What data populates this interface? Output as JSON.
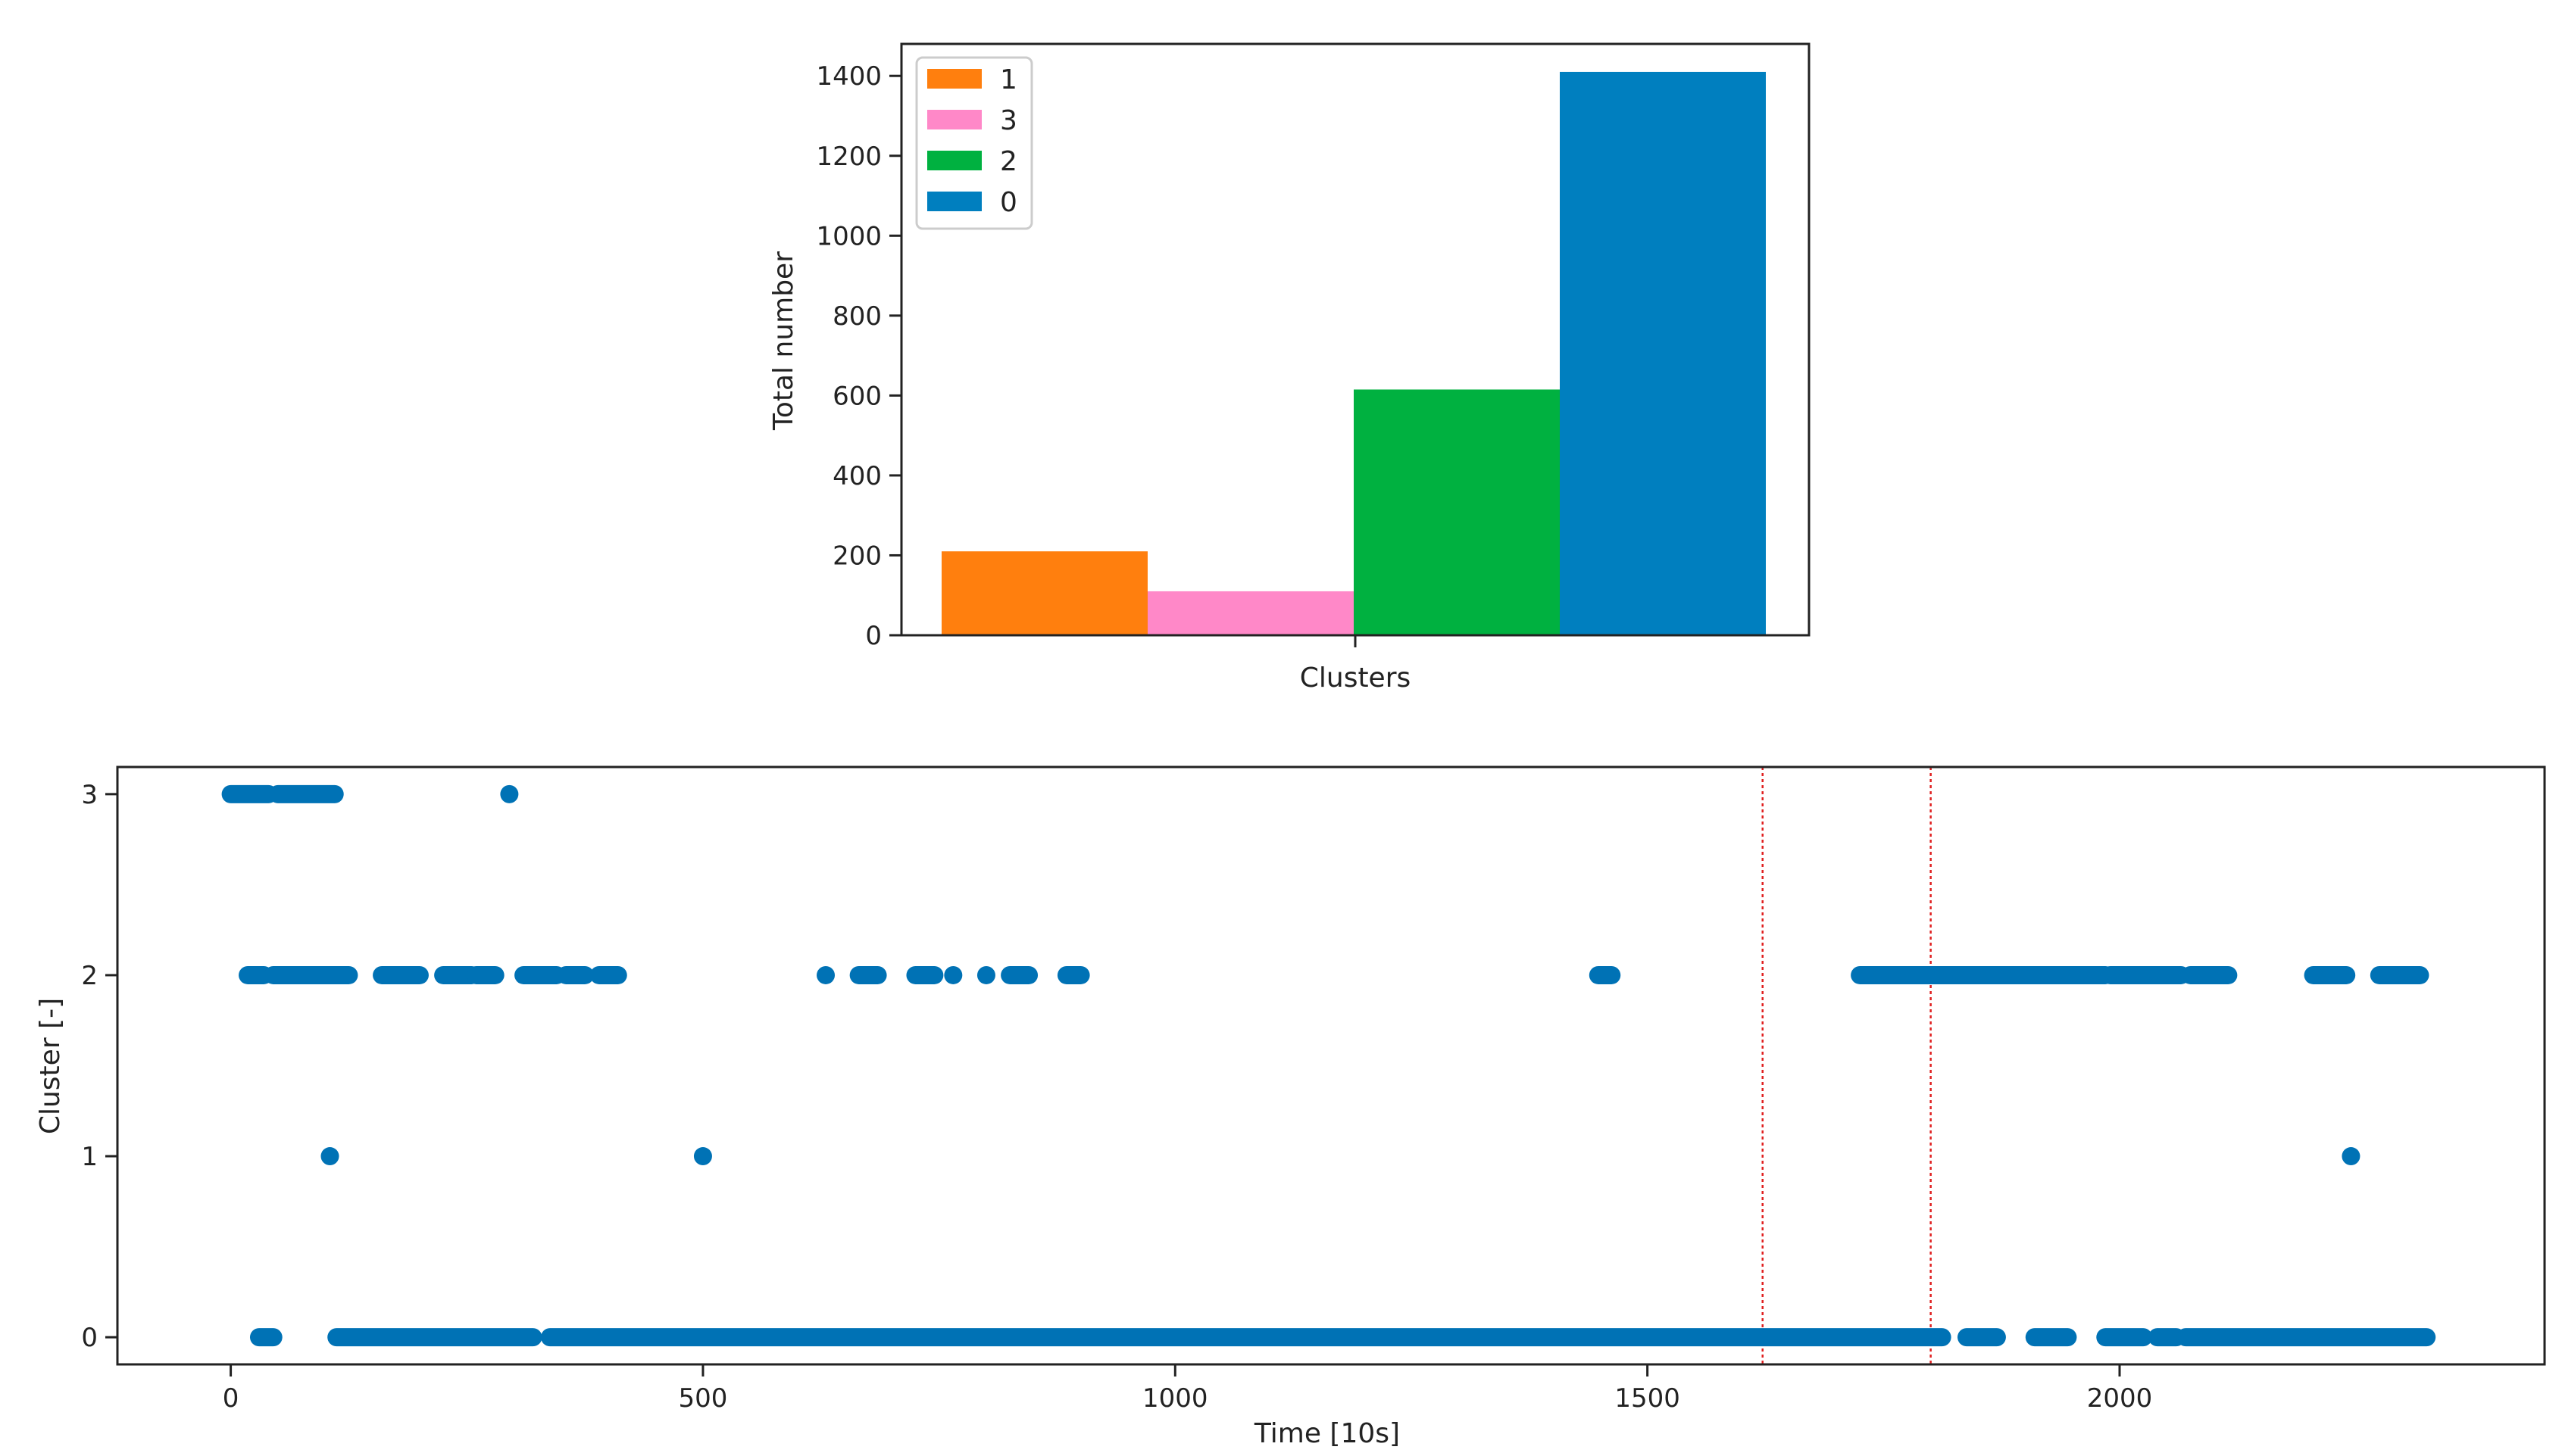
{
  "chart_data": [
    {
      "type": "bar",
      "xlabel": "Clusters",
      "ylabel": "Total number",
      "ylim": [
        0,
        1480
      ],
      "yticks": [
        0,
        200,
        400,
        600,
        800,
        1000,
        1200,
        1400
      ],
      "legend_position": "top-left",
      "series": [
        {
          "name": "1",
          "value": 210,
          "color": "#ff7f0e"
        },
        {
          "name": "3",
          "value": 110,
          "color": "#ff88c8"
        },
        {
          "name": "2",
          "value": 615,
          "color": "#00b140"
        },
        {
          "name": "0",
          "value": 1410,
          "color": "#007fbf"
        }
      ]
    },
    {
      "type": "scatter",
      "xlabel": "Time [10s]",
      "ylabel": "Cluster [-]",
      "xlim": [
        -120,
        2450
      ],
      "ylim": [
        -0.15,
        3.15
      ],
      "xticks": [
        0,
        500,
        1000,
        1500,
        2000
      ],
      "yticks": [
        0,
        1,
        2,
        3
      ],
      "marker_color": "#0072b5",
      "vlines": [
        {
          "x": 1622,
          "color": "#e02020"
        },
        {
          "x": 1800,
          "color": "#e02020"
        }
      ],
      "segments": [
        {
          "y": 3,
          "from": 0,
          "to": 40
        },
        {
          "y": 3,
          "from": 50,
          "to": 110
        },
        {
          "y": 2,
          "from": 18,
          "to": 35
        },
        {
          "y": 2,
          "from": 45,
          "to": 125
        },
        {
          "y": 2,
          "from": 160,
          "to": 200
        },
        {
          "y": 2,
          "from": 225,
          "to": 255
        },
        {
          "y": 2,
          "from": 260,
          "to": 280
        },
        {
          "y": 2,
          "from": 310,
          "to": 345
        },
        {
          "y": 2,
          "from": 355,
          "to": 375
        },
        {
          "y": 2,
          "from": 390,
          "to": 410
        },
        {
          "y": 2,
          "from": 665,
          "to": 685
        },
        {
          "y": 2,
          "from": 725,
          "to": 745
        },
        {
          "y": 2,
          "from": 825,
          "to": 845
        },
        {
          "y": 2,
          "from": 885,
          "to": 900
        },
        {
          "y": 2,
          "from": 1448,
          "to": 1462
        },
        {
          "y": 2,
          "from": 1725,
          "to": 1985
        },
        {
          "y": 2,
          "from": 1990,
          "to": 2065
        },
        {
          "y": 2,
          "from": 2075,
          "to": 2115
        },
        {
          "y": 2,
          "from": 2205,
          "to": 2240
        },
        {
          "y": 2,
          "from": 2275,
          "to": 2318
        },
        {
          "y": 0,
          "from": 30,
          "to": 45
        },
        {
          "y": 0,
          "from": 112,
          "to": 320
        },
        {
          "y": 0,
          "from": 338,
          "to": 1812
        },
        {
          "y": 0,
          "from": 1838,
          "to": 1870
        },
        {
          "y": 0,
          "from": 1910,
          "to": 1945
        },
        {
          "y": 0,
          "from": 1985,
          "to": 2025
        },
        {
          "y": 0,
          "from": 2040,
          "to": 2060
        },
        {
          "y": 0,
          "from": 2070,
          "to": 2325
        }
      ],
      "points": [
        {
          "x": 295,
          "y": 3
        },
        {
          "x": 630,
          "y": 2
        },
        {
          "x": 765,
          "y": 2
        },
        {
          "x": 800,
          "y": 2
        },
        {
          "x": 105,
          "y": 1
        },
        {
          "x": 500,
          "y": 1
        },
        {
          "x": 2245,
          "y": 1
        }
      ]
    }
  ]
}
